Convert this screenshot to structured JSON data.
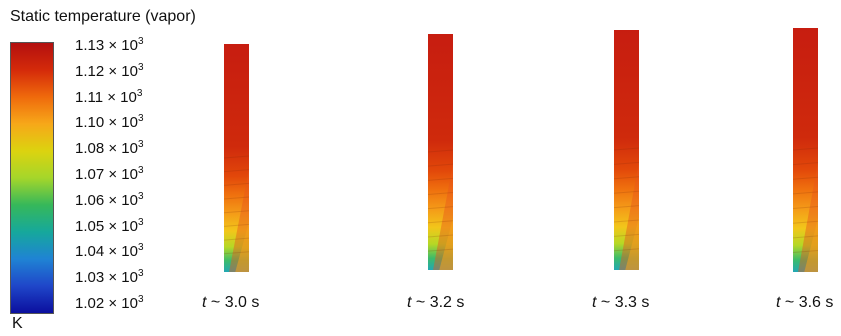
{
  "title": "Static temperature (vapor)",
  "colorbar": {
    "unit": "K",
    "exponent": "3",
    "multiplier": "× 10",
    "ticks": [
      "1.13",
      "1.12",
      "1.11",
      "1.10",
      "1.08",
      "1.07",
      "1.06",
      "1.05",
      "1.04",
      "1.03",
      "1.02"
    ],
    "colors": [
      "#b30f0f",
      "#d42a0a",
      "#ef6a0c",
      "#f7a819",
      "#dcd30f",
      "#a5d62a",
      "#36b85a",
      "#16a89c",
      "#1f83d4",
      "#1f46c9",
      "#0b0f9e"
    ]
  },
  "snapshots": [
    {
      "t_prefix": "t",
      "t_value": "~ 3.0 s"
    },
    {
      "t_prefix": "t",
      "t_value": "~ 3.2 s"
    },
    {
      "t_prefix": "t",
      "t_value": "~ 3.3 s"
    },
    {
      "t_prefix": "t",
      "t_value": "~ 3.6 s"
    }
  ]
}
